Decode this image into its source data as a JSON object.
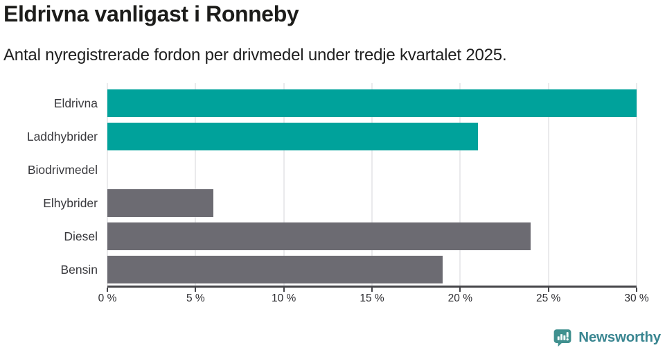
{
  "header": {
    "title": "Eldrivna vanligast i Ronneby",
    "subtitle": "Antal nyregistrerade fordon per drivmedel under tredje kvartalet 2025."
  },
  "chart_data": {
    "type": "bar",
    "orientation": "horizontal",
    "title": "Eldrivna vanligast i Ronneby",
    "subtitle": "Antal nyregistrerade fordon per drivmedel under tredje kvartalet 2025.",
    "categories": [
      "Eldrivna",
      "Laddhybrider",
      "Biodrivmedel",
      "Elhybrider",
      "Diesel",
      "Bensin"
    ],
    "values": [
      30,
      21,
      0,
      6,
      24,
      19
    ],
    "value_unit": "%",
    "xlim": [
      0,
      30
    ],
    "xticks": [
      0,
      5,
      10,
      15,
      20,
      25,
      30
    ],
    "xtick_label_suffix": " %",
    "grid": true,
    "legend_position": "none",
    "bar_colors": [
      "#00a29b",
      "#00a29b",
      "#6c6b72",
      "#6c6b72",
      "#6c6b72",
      "#6c6b72"
    ],
    "colors": {
      "highlight": "#00a29b",
      "default": "#6c6b72",
      "gridline": "#eaeaec",
      "axis_line": "#454549",
      "tick_label": "#2e2e32",
      "category_label": "#38383c"
    }
  },
  "footer": {
    "brand": "Newsworthy",
    "logo_icon": "newsworthy-speech-bubble-bar-chart-icon",
    "brand_text_color": "#3a8691",
    "icon_color": "#40908f"
  }
}
